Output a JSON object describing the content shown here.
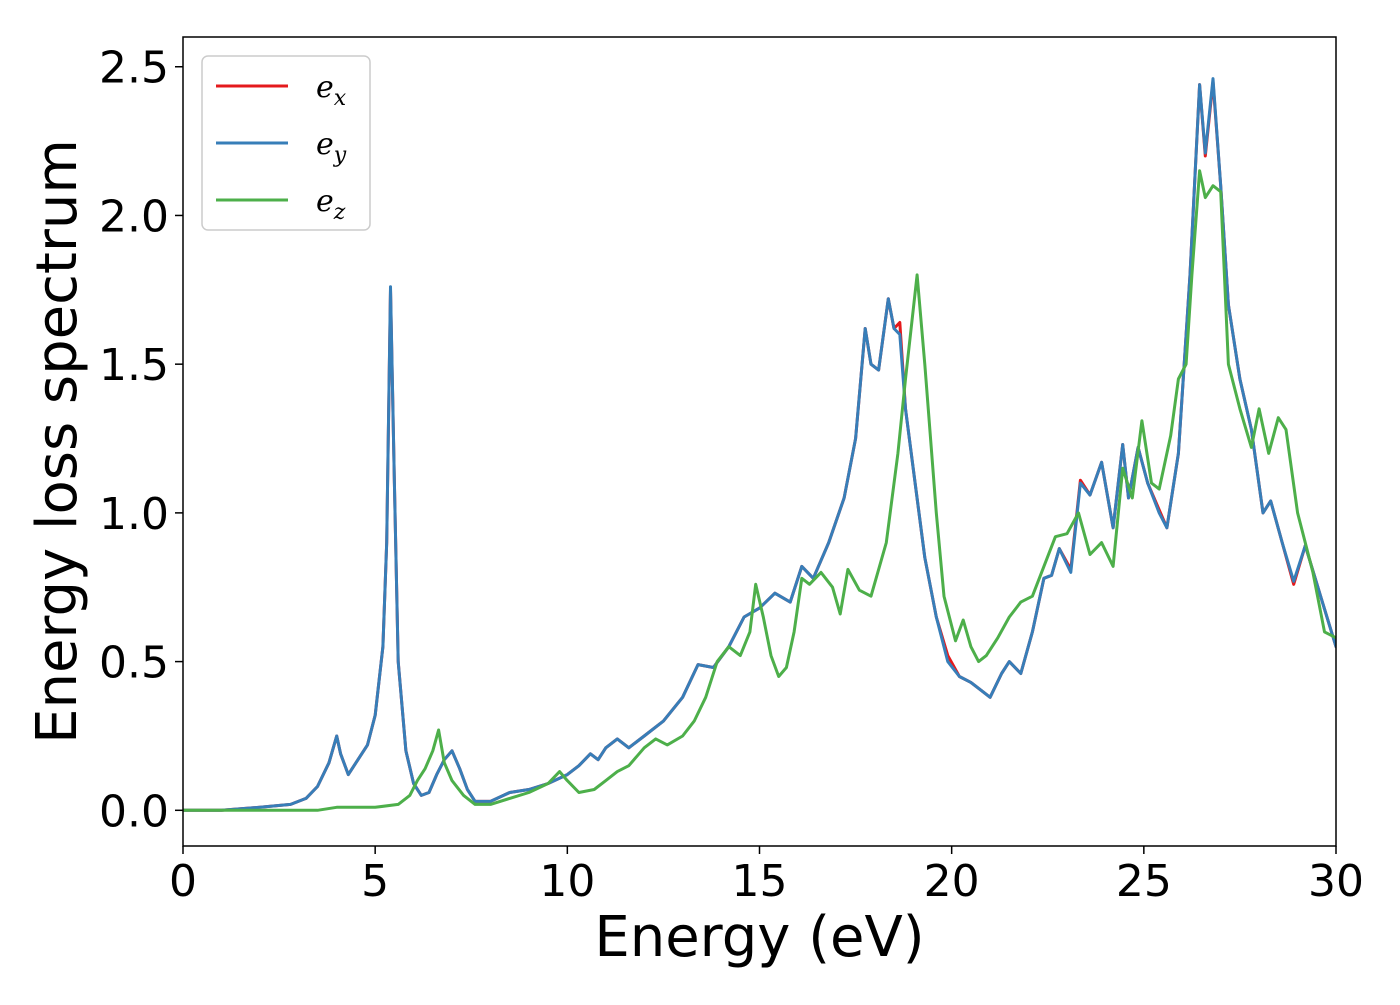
{
  "chart_data": {
    "type": "line",
    "title": "",
    "xlabel": "Energy (eV)",
    "ylabel": "Energy loss spectrum",
    "xlim": [
      0,
      30
    ],
    "ylim": [
      -0.12,
      2.6
    ],
    "xticks": [
      0,
      5,
      10,
      15,
      20,
      25,
      30
    ],
    "xtick_labels": [
      "0",
      "5",
      "10",
      "15",
      "20",
      "25",
      "30"
    ],
    "yticks": [
      0.0,
      0.5,
      1.0,
      1.5,
      2.0,
      2.5
    ],
    "ytick_labels": [
      "0.0",
      "0.5",
      "1.0",
      "1.5",
      "2.0",
      "2.5"
    ],
    "grid": false,
    "legend_position": "top-left",
    "series": [
      {
        "name": "e",
        "subscript": "x",
        "color": "#e41a1c",
        "x": [
          0,
          1,
          2,
          2.8,
          3.2,
          3.5,
          3.8,
          4.0,
          4.1,
          4.3,
          4.4,
          4.6,
          4.8,
          5.0,
          5.2,
          5.3,
          5.4,
          5.5,
          5.6,
          5.8,
          6.0,
          6.2,
          6.4,
          6.6,
          6.8,
          7.0,
          7.2,
          7.4,
          7.6,
          8.0,
          8.5,
          9.0,
          9.5,
          10.0,
          10.3,
          10.6,
          10.8,
          11.0,
          11.3,
          11.6,
          12.0,
          12.5,
          13.0,
          13.4,
          13.8,
          14.2,
          14.6,
          15.0,
          15.4,
          15.8,
          16.1,
          16.4,
          16.8,
          17.2,
          17.5,
          17.75,
          17.9,
          18.1,
          18.35,
          18.5,
          18.65,
          18.8,
          19.0,
          19.3,
          19.6,
          19.9,
          20.2,
          20.5,
          20.8,
          21.0,
          21.3,
          21.5,
          21.8,
          22.1,
          22.4,
          22.6,
          22.8,
          23.1,
          23.35,
          23.6,
          23.9,
          24.2,
          24.45,
          24.6,
          24.85,
          25.1,
          25.4,
          25.6,
          25.9,
          26.2,
          26.45,
          26.6,
          26.8,
          27.0,
          27.2,
          27.5,
          27.8,
          28.1,
          28.3,
          28.6,
          28.9,
          29.2,
          29.6,
          30.0
        ],
        "y": [
          0,
          0,
          0.01,
          0.02,
          0.04,
          0.08,
          0.16,
          0.25,
          0.19,
          0.12,
          0.14,
          0.18,
          0.22,
          0.32,
          0.55,
          0.9,
          1.75,
          1.1,
          0.5,
          0.2,
          0.09,
          0.05,
          0.06,
          0.12,
          0.17,
          0.2,
          0.14,
          0.07,
          0.03,
          0.03,
          0.06,
          0.07,
          0.09,
          0.12,
          0.15,
          0.19,
          0.17,
          0.21,
          0.24,
          0.21,
          0.25,
          0.3,
          0.38,
          0.49,
          0.48,
          0.55,
          0.65,
          0.68,
          0.73,
          0.7,
          0.82,
          0.78,
          0.9,
          1.05,
          1.25,
          1.62,
          1.5,
          1.48,
          1.72,
          1.62,
          1.64,
          1.35,
          1.15,
          0.85,
          0.65,
          0.52,
          0.45,
          0.43,
          0.4,
          0.38,
          0.46,
          0.5,
          0.46,
          0.6,
          0.78,
          0.79,
          0.88,
          0.81,
          1.11,
          1.06,
          1.17,
          0.95,
          1.23,
          1.05,
          1.22,
          1.1,
          1.01,
          0.95,
          1.2,
          1.8,
          2.44,
          2.2,
          2.45,
          2.1,
          1.7,
          1.45,
          1.28,
          1.0,
          1.04,
          0.9,
          0.76,
          0.89,
          0.72,
          0.55
        ]
      },
      {
        "name": "e",
        "subscript": "y",
        "color": "#377eb8",
        "x": [
          0,
          1,
          2,
          2.8,
          3.2,
          3.5,
          3.8,
          4.0,
          4.1,
          4.3,
          4.4,
          4.6,
          4.8,
          5.0,
          5.2,
          5.3,
          5.4,
          5.5,
          5.6,
          5.8,
          6.0,
          6.2,
          6.4,
          6.6,
          6.8,
          7.0,
          7.2,
          7.4,
          7.6,
          8.0,
          8.5,
          9.0,
          9.5,
          10.0,
          10.3,
          10.6,
          10.8,
          11.0,
          11.3,
          11.6,
          12.0,
          12.5,
          13.0,
          13.4,
          13.8,
          14.2,
          14.6,
          15.0,
          15.4,
          15.8,
          16.1,
          16.4,
          16.8,
          17.2,
          17.5,
          17.75,
          17.9,
          18.1,
          18.35,
          18.5,
          18.65,
          18.8,
          19.0,
          19.3,
          19.6,
          19.9,
          20.2,
          20.5,
          20.8,
          21.0,
          21.3,
          21.5,
          21.8,
          22.1,
          22.4,
          22.6,
          22.8,
          23.1,
          23.35,
          23.6,
          23.9,
          24.2,
          24.45,
          24.6,
          24.85,
          25.1,
          25.4,
          25.6,
          25.9,
          26.2,
          26.45,
          26.6,
          26.8,
          27.0,
          27.2,
          27.5,
          27.8,
          28.1,
          28.3,
          28.6,
          28.9,
          29.2,
          29.6,
          30.0
        ],
        "y": [
          0,
          0,
          0.01,
          0.02,
          0.04,
          0.08,
          0.16,
          0.25,
          0.19,
          0.12,
          0.14,
          0.18,
          0.22,
          0.32,
          0.55,
          0.9,
          1.76,
          1.1,
          0.5,
          0.2,
          0.09,
          0.05,
          0.06,
          0.12,
          0.17,
          0.2,
          0.14,
          0.07,
          0.03,
          0.03,
          0.06,
          0.07,
          0.09,
          0.12,
          0.15,
          0.19,
          0.17,
          0.21,
          0.24,
          0.21,
          0.25,
          0.3,
          0.38,
          0.49,
          0.48,
          0.55,
          0.65,
          0.68,
          0.73,
          0.7,
          0.82,
          0.78,
          0.9,
          1.05,
          1.25,
          1.62,
          1.5,
          1.48,
          1.72,
          1.62,
          1.6,
          1.35,
          1.15,
          0.85,
          0.65,
          0.5,
          0.45,
          0.43,
          0.4,
          0.38,
          0.46,
          0.5,
          0.46,
          0.6,
          0.78,
          0.79,
          0.88,
          0.8,
          1.1,
          1.06,
          1.17,
          0.95,
          1.23,
          1.05,
          1.22,
          1.1,
          1.0,
          0.95,
          1.2,
          1.8,
          2.44,
          2.21,
          2.46,
          2.1,
          1.7,
          1.45,
          1.28,
          1.0,
          1.04,
          0.9,
          0.77,
          0.89,
          0.72,
          0.55
        ]
      },
      {
        "name": "e",
        "subscript": "z",
        "color": "#4daf4a",
        "x": [
          0,
          2,
          3.5,
          4.0,
          5.0,
          5.6,
          5.9,
          6.1,
          6.3,
          6.5,
          6.65,
          6.8,
          7.0,
          7.3,
          7.6,
          8.0,
          8.5,
          9.0,
          9.5,
          9.8,
          10.0,
          10.3,
          10.7,
          11.0,
          11.3,
          11.6,
          12.0,
          12.3,
          12.6,
          13.0,
          13.3,
          13.6,
          13.9,
          14.2,
          14.5,
          14.75,
          14.9,
          15.1,
          15.3,
          15.5,
          15.7,
          15.9,
          16.1,
          16.3,
          16.6,
          16.9,
          17.1,
          17.3,
          17.6,
          17.9,
          18.3,
          18.6,
          18.8,
          19.1,
          19.3,
          19.6,
          19.8,
          20.1,
          20.3,
          20.5,
          20.7,
          20.9,
          21.2,
          21.5,
          21.8,
          22.1,
          22.4,
          22.7,
          23.0,
          23.3,
          23.6,
          23.9,
          24.2,
          24.45,
          24.7,
          24.95,
          25.2,
          25.4,
          25.7,
          25.9,
          26.1,
          26.25,
          26.45,
          26.6,
          26.8,
          27.0,
          27.2,
          27.5,
          27.8,
          28.0,
          28.25,
          28.5,
          28.7,
          29.0,
          29.4,
          29.7,
          30.0
        ],
        "y": [
          0,
          0,
          0.0,
          0.01,
          0.01,
          0.02,
          0.05,
          0.1,
          0.14,
          0.2,
          0.27,
          0.16,
          0.1,
          0.05,
          0.02,
          0.02,
          0.04,
          0.06,
          0.09,
          0.13,
          0.1,
          0.06,
          0.07,
          0.1,
          0.13,
          0.15,
          0.21,
          0.24,
          0.22,
          0.25,
          0.3,
          0.38,
          0.5,
          0.55,
          0.52,
          0.6,
          0.76,
          0.65,
          0.52,
          0.45,
          0.48,
          0.6,
          0.78,
          0.76,
          0.8,
          0.75,
          0.66,
          0.81,
          0.74,
          0.72,
          0.9,
          1.2,
          1.45,
          1.8,
          1.5,
          1.0,
          0.72,
          0.57,
          0.64,
          0.55,
          0.5,
          0.52,
          0.58,
          0.65,
          0.7,
          0.72,
          0.82,
          0.92,
          0.93,
          1.0,
          0.86,
          0.9,
          0.82,
          1.15,
          1.05,
          1.31,
          1.1,
          1.08,
          1.26,
          1.45,
          1.5,
          1.8,
          2.15,
          2.06,
          2.1,
          2.08,
          1.5,
          1.35,
          1.22,
          1.35,
          1.2,
          1.32,
          1.28,
          1.0,
          0.8,
          0.6,
          0.58
        ]
      }
    ]
  }
}
